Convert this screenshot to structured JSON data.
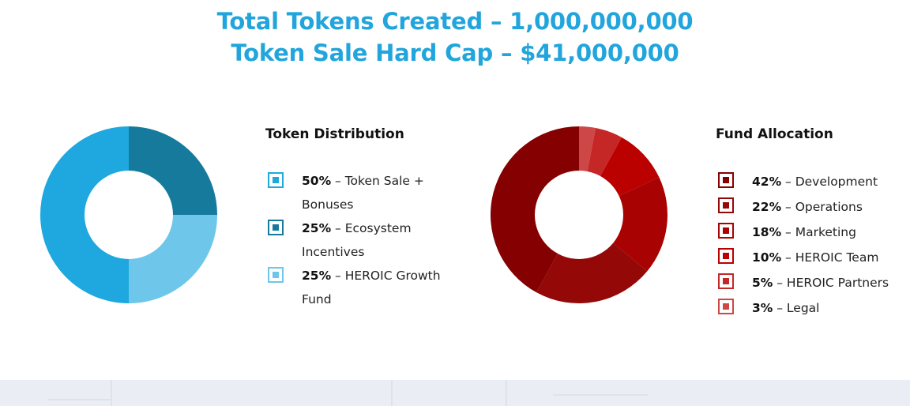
{
  "header": {
    "line1": "Total Tokens Created – 1,000,000,000",
    "line2": "Token Sale Hard Cap – $41,000,000"
  },
  "chart_data": [
    {
      "type": "pie",
      "title": "Token Distribution",
      "donut": true,
      "categories": [
        "Token Sale + Bonuses",
        "Ecosystem Incentives",
        "HEROIC Growth Fund"
      ],
      "values": [
        50,
        25,
        25
      ],
      "colors": [
        "#1ea8df",
        "#167a9d",
        "#6ec6ea"
      ],
      "legend": [
        {
          "pct": "50%",
          "text": " – Token Sale + Bonuses"
        },
        {
          "pct": "25%",
          "text": " – Ecosystem Incentives"
        },
        {
          "pct": "25%",
          "text": " – HEROIC Growth Fund"
        }
      ]
    },
    {
      "type": "pie",
      "title": "Fund Allocation",
      "donut": true,
      "categories": [
        "Development",
        "Operations",
        "Marketing",
        "HEROIC Team",
        "HEROIC Partners",
        "Legal"
      ],
      "values": [
        42,
        22,
        18,
        10,
        5,
        3
      ],
      "colors": [
        "#850000",
        "#940808",
        "#a80202",
        "#bb0000",
        "#c52727",
        "#cd4747"
      ],
      "legend": [
        {
          "pct": "42%",
          "text": " – Development"
        },
        {
          "pct": "22%",
          "text": " – Operations"
        },
        {
          "pct": "18%",
          "text": " – Marketing"
        },
        {
          "pct": "10%",
          "text": " – HEROIC Team"
        },
        {
          "pct": "5%",
          "text": " – HEROIC Partners"
        },
        {
          "pct": "3%",
          "text": " – Legal"
        }
      ]
    }
  ],
  "pie_rendering": {
    "token_distribution_order": "clockwise from 12 o'clock: Ecosystem Incentives, HEROIC Growth Fund, Token Sale + Bonuses",
    "fund_allocation_order": "clockwise from 12 o'clock: Legal, HEROIC Partners, HEROIC Team, Marketing, Operations, Development"
  }
}
